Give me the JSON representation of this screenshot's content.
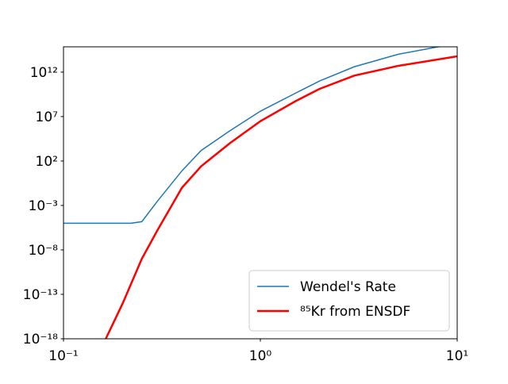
{
  "chart_data": {
    "type": "line",
    "xlog": true,
    "ylog": true,
    "xlim": [
      0.1,
      10
    ],
    "ylim": [
      1e-18,
      700000000000000.0
    ],
    "xticks": [
      {
        "value": 0.1,
        "label": "10⁻¹"
      },
      {
        "value": 1,
        "label": "10⁰"
      },
      {
        "value": 10,
        "label": "10¹"
      }
    ],
    "yticks": [
      {
        "value": 1e-18,
        "label": "10⁻¹⁸"
      },
      {
        "value": 1e-13,
        "label": "10⁻¹³"
      },
      {
        "value": 1e-08,
        "label": "10⁻⁸"
      },
      {
        "value": 0.001,
        "label": "10⁻³"
      },
      {
        "value": 100,
        "label": "10²"
      },
      {
        "value": 10000000.0,
        "label": "10⁷"
      },
      {
        "value": 1000000000000.0,
        "label": "10¹²"
      }
    ],
    "legend": "lower right",
    "series": [
      {
        "name": "Wendel's Rate",
        "color": "#1f77b4",
        "width": 1.5,
        "x": [
          0.1,
          0.22,
          0.25,
          0.3,
          0.4,
          0.5,
          0.7,
          1.0,
          1.5,
          2,
          3,
          5,
          8,
          10
        ],
        "values": [
          1e-05,
          1e-05,
          1.5e-05,
          0.003,
          8,
          1500,
          250000.0,
          40000000.0,
          4000000000.0,
          100000000000.0,
          4000000000000.0,
          100000000000000.0,
          700000000000000.0,
          1000000000000000.0
        ]
      },
      {
        "name": "⁸⁵Kr from ENSDF",
        "color": "#ff0000",
        "width": 2.5,
        "x": [
          0.164,
          0.2,
          0.25,
          0.3,
          0.4,
          0.5,
          0.7,
          1.0,
          1.5,
          2,
          3,
          5,
          10
        ],
        "values": [
          1e-18,
          1e-14,
          1e-09,
          1.6e-06,
          0.1,
          25,
          10000.0,
          3000000.0,
          500000000.0,
          13000000000.0,
          400000000000.0,
          5000000000000.0,
          60000000000000.0
        ]
      }
    ]
  }
}
